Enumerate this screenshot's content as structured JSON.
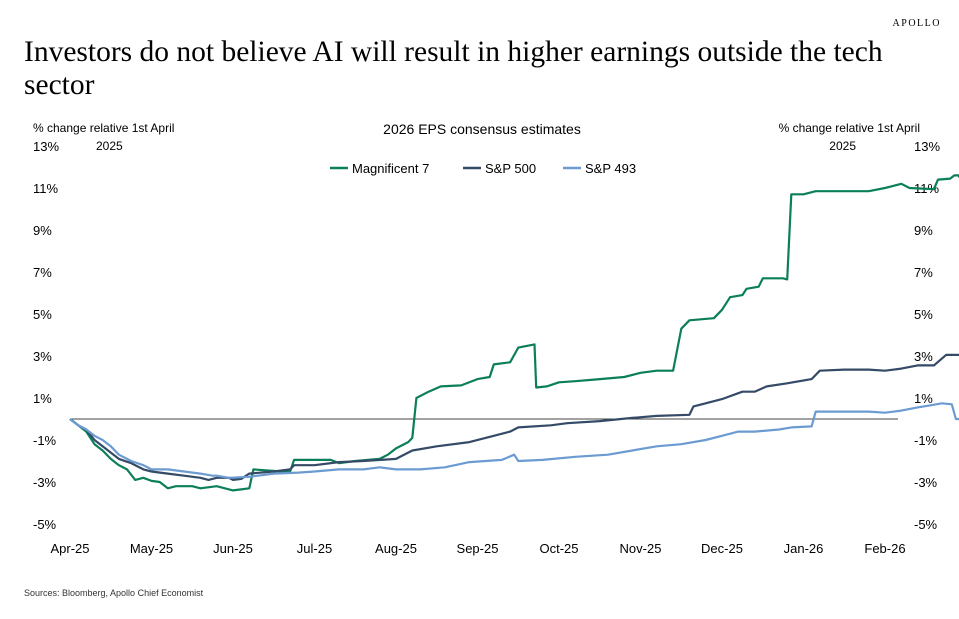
{
  "brand": "APOLLO",
  "headline": "Investors do not believe AI will result in higher earnings outside the tech sector",
  "source": "Sources: Bloomberg, Apollo Chief Economist",
  "chart_data": {
    "type": "line",
    "title": "2026 EPS consensus estimates",
    "ylabel_left": [
      "% change relative 1st April",
      "2025"
    ],
    "ylabel_right": [
      "% change relative 1st April",
      "2025"
    ],
    "ylim": [
      -5,
      13
    ],
    "yticks": [
      "13%",
      "11%",
      "9%",
      "7%",
      "5%",
      "3%",
      "1%",
      "-1%",
      "-3%",
      "-5%"
    ],
    "ytick_values": [
      13,
      11,
      9,
      7,
      5,
      3,
      1,
      -1,
      -3,
      -5
    ],
    "xlim": [
      0,
      10.5
    ],
    "xticks": [
      "Apr-25",
      "May-25",
      "Jun-25",
      "Jul-25",
      "Aug-25",
      "Sep-25",
      "Oct-25",
      "Nov-25",
      "Dec-25",
      "Jan-26",
      "Feb-26"
    ],
    "legend_position": "top-center",
    "grid": false,
    "series": [
      {
        "name": "Magnificent 7",
        "color": "#0b7f5a",
        "points": [
          [
            0,
            0
          ],
          [
            0.1,
            -0.3
          ],
          [
            0.2,
            -0.6
          ],
          [
            0.3,
            -1.2
          ],
          [
            0.4,
            -1.5
          ],
          [
            0.5,
            -1.9
          ],
          [
            0.6,
            -2.2
          ],
          [
            0.7,
            -2.4
          ],
          [
            0.8,
            -2.9
          ],
          [
            0.9,
            -2.8
          ],
          [
            1.0,
            -2.95
          ],
          [
            1.1,
            -3.0
          ],
          [
            1.2,
            -3.3
          ],
          [
            1.3,
            -3.2
          ],
          [
            1.5,
            -3.2
          ],
          [
            1.6,
            -3.3
          ],
          [
            1.8,
            -3.2
          ],
          [
            2.0,
            -3.4
          ],
          [
            2.1,
            -3.35
          ],
          [
            2.2,
            -3.3
          ],
          [
            2.25,
            -2.4
          ],
          [
            2.4,
            -2.45
          ],
          [
            2.6,
            -2.5
          ],
          [
            2.7,
            -2.5
          ],
          [
            2.75,
            -1.95
          ],
          [
            3.0,
            -1.95
          ],
          [
            3.2,
            -1.95
          ],
          [
            3.3,
            -2.1
          ],
          [
            3.5,
            -2.0
          ],
          [
            3.8,
            -1.9
          ],
          [
            3.9,
            -1.7
          ],
          [
            4.0,
            -1.4
          ],
          [
            4.15,
            -1.1
          ],
          [
            4.2,
            -0.9
          ],
          [
            4.25,
            1.0
          ],
          [
            4.4,
            1.3
          ],
          [
            4.55,
            1.55
          ],
          [
            4.8,
            1.6
          ],
          [
            5.0,
            1.9
          ],
          [
            5.15,
            2.0
          ],
          [
            5.2,
            2.6
          ],
          [
            5.4,
            2.7
          ],
          [
            5.5,
            3.4
          ],
          [
            5.7,
            3.55
          ],
          [
            5.72,
            1.5
          ],
          [
            5.85,
            1.55
          ],
          [
            6.0,
            1.75
          ],
          [
            6.2,
            1.8
          ],
          [
            6.5,
            1.9
          ],
          [
            6.8,
            2.0
          ],
          [
            7.0,
            2.2
          ],
          [
            7.2,
            2.3
          ],
          [
            7.4,
            2.3
          ],
          [
            7.5,
            4.3
          ],
          [
            7.6,
            4.7
          ],
          [
            7.9,
            4.8
          ],
          [
            8.0,
            5.2
          ],
          [
            8.1,
            5.8
          ],
          [
            8.25,
            5.9
          ],
          [
            8.3,
            6.2
          ],
          [
            8.45,
            6.3
          ],
          [
            8.5,
            6.7
          ],
          [
            8.75,
            6.7
          ],
          [
            8.8,
            6.65
          ],
          [
            8.85,
            10.7
          ],
          [
            9.0,
            10.7
          ],
          [
            9.15,
            10.85
          ],
          [
            9.5,
            10.85
          ],
          [
            9.8,
            10.85
          ],
          [
            10.0,
            11.0
          ],
          [
            10.2,
            11.2
          ],
          [
            10.3,
            11.0
          ],
          [
            10.6,
            10.95
          ],
          [
            10.65,
            11.4
          ],
          [
            10.8,
            11.45
          ],
          [
            10.85,
            11.6
          ],
          [
            10.9,
            11.6
          ],
          [
            10.95,
            11.3
          ],
          [
            11.0,
            11.3
          ]
        ]
      },
      {
        "name": "S&P 500",
        "color": "#344a66",
        "points": [
          [
            0,
            0
          ],
          [
            0.1,
            -0.3
          ],
          [
            0.2,
            -0.5
          ],
          [
            0.3,
            -1.0
          ],
          [
            0.4,
            -1.3
          ],
          [
            0.5,
            -1.6
          ],
          [
            0.6,
            -1.9
          ],
          [
            0.75,
            -2.1
          ],
          [
            0.9,
            -2.4
          ],
          [
            1.0,
            -2.5
          ],
          [
            1.2,
            -2.6
          ],
          [
            1.4,
            -2.7
          ],
          [
            1.6,
            -2.8
          ],
          [
            1.7,
            -2.9
          ],
          [
            1.8,
            -2.8
          ],
          [
            1.95,
            -2.8
          ],
          [
            2.0,
            -2.9
          ],
          [
            2.1,
            -2.85
          ],
          [
            2.2,
            -2.6
          ],
          [
            2.5,
            -2.5
          ],
          [
            2.7,
            -2.4
          ],
          [
            2.75,
            -2.2
          ],
          [
            3.0,
            -2.2
          ],
          [
            3.3,
            -2.05
          ],
          [
            3.6,
            -2.0
          ],
          [
            4.0,
            -1.9
          ],
          [
            4.2,
            -1.5
          ],
          [
            4.5,
            -1.3
          ],
          [
            4.9,
            -1.1
          ],
          [
            5.2,
            -0.8
          ],
          [
            5.4,
            -0.6
          ],
          [
            5.5,
            -0.4
          ],
          [
            5.9,
            -0.3
          ],
          [
            6.1,
            -0.2
          ],
          [
            6.5,
            -0.1
          ],
          [
            6.9,
            0.05
          ],
          [
            7.2,
            0.15
          ],
          [
            7.6,
            0.2
          ],
          [
            7.65,
            0.6
          ],
          [
            7.8,
            0.75
          ],
          [
            8.0,
            0.95
          ],
          [
            8.25,
            1.3
          ],
          [
            8.4,
            1.3
          ],
          [
            8.55,
            1.55
          ],
          [
            8.8,
            1.7
          ],
          [
            9.1,
            1.9
          ],
          [
            9.2,
            2.3
          ],
          [
            9.5,
            2.35
          ],
          [
            9.8,
            2.35
          ],
          [
            10.0,
            2.3
          ],
          [
            10.2,
            2.4
          ],
          [
            10.4,
            2.55
          ],
          [
            10.6,
            2.55
          ],
          [
            10.75,
            3.05
          ],
          [
            10.9,
            3.05
          ],
          [
            11.0,
            3.0
          ]
        ]
      },
      {
        "name": "S&P 493",
        "color": "#6b9bd1",
        "points": [
          [
            0,
            0
          ],
          [
            0.1,
            -0.3
          ],
          [
            0.2,
            -0.5
          ],
          [
            0.3,
            -0.8
          ],
          [
            0.4,
            -1.0
          ],
          [
            0.5,
            -1.3
          ],
          [
            0.6,
            -1.7
          ],
          [
            0.75,
            -2.0
          ],
          [
            0.9,
            -2.2
          ],
          [
            1.0,
            -2.4
          ],
          [
            1.2,
            -2.4
          ],
          [
            1.4,
            -2.5
          ],
          [
            1.6,
            -2.6
          ],
          [
            1.75,
            -2.7
          ],
          [
            1.8,
            -2.7
          ],
          [
            1.95,
            -2.8
          ],
          [
            2.2,
            -2.75
          ],
          [
            2.5,
            -2.6
          ],
          [
            2.8,
            -2.55
          ],
          [
            3.0,
            -2.5
          ],
          [
            3.3,
            -2.4
          ],
          [
            3.6,
            -2.4
          ],
          [
            3.8,
            -2.3
          ],
          [
            4.0,
            -2.4
          ],
          [
            4.3,
            -2.4
          ],
          [
            4.6,
            -2.3
          ],
          [
            4.9,
            -2.05
          ],
          [
            5.3,
            -1.95
          ],
          [
            5.45,
            -1.7
          ],
          [
            5.5,
            -2.0
          ],
          [
            5.8,
            -1.95
          ],
          [
            6.2,
            -1.8
          ],
          [
            6.6,
            -1.7
          ],
          [
            6.9,
            -1.5
          ],
          [
            7.2,
            -1.3
          ],
          [
            7.5,
            -1.2
          ],
          [
            7.8,
            -1.0
          ],
          [
            8.0,
            -0.8
          ],
          [
            8.2,
            -0.6
          ],
          [
            8.4,
            -0.6
          ],
          [
            8.7,
            -0.5
          ],
          [
            8.85,
            -0.4
          ],
          [
            9.1,
            -0.35
          ],
          [
            9.15,
            0.35
          ],
          [
            9.4,
            0.35
          ],
          [
            9.8,
            0.35
          ],
          [
            10.0,
            0.3
          ],
          [
            10.2,
            0.4
          ],
          [
            10.4,
            0.55
          ],
          [
            10.55,
            0.65
          ],
          [
            10.7,
            0.75
          ],
          [
            10.82,
            0.7
          ],
          [
            10.87,
            0.0
          ],
          [
            11.0,
            0.0
          ]
        ]
      }
    ]
  }
}
